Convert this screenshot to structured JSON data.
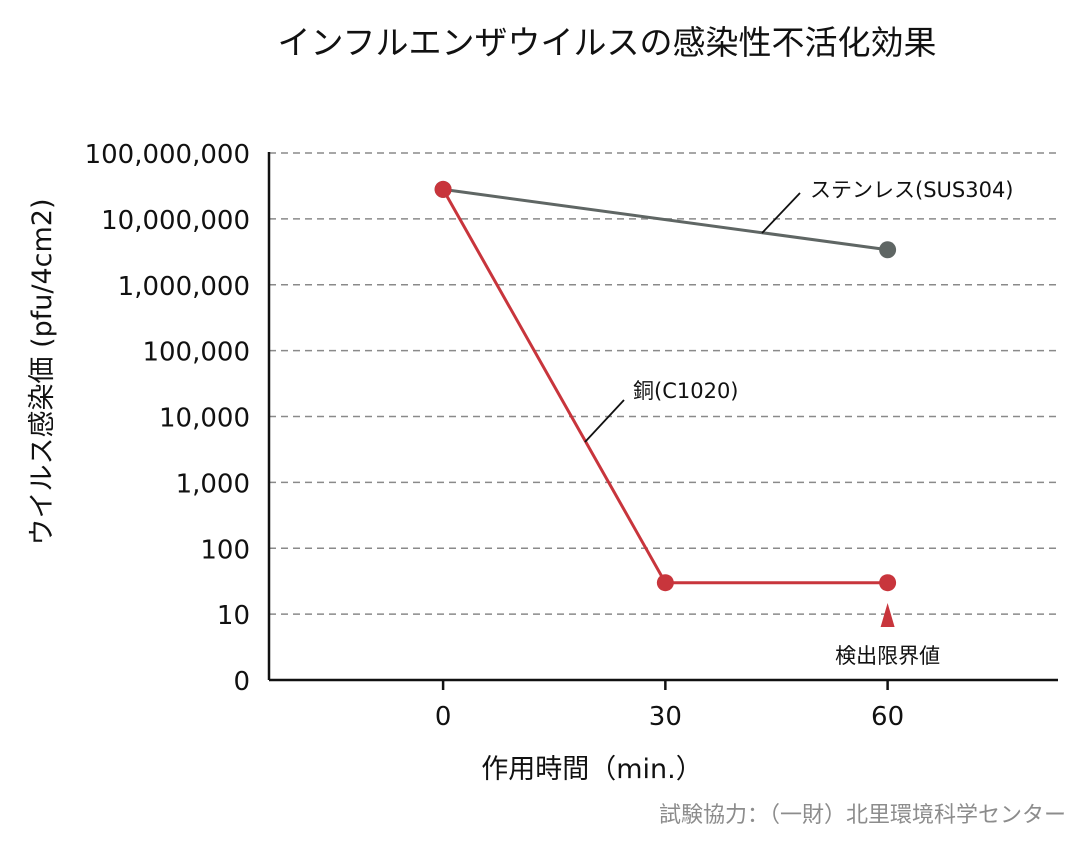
{
  "chart_data": {
    "type": "line",
    "title": "インフルエンザウイルスの感染性不活化効果",
    "xlabel": "作用時間（min.）",
    "ylabel": "ウイルス感染価 (pfu/4cm2)",
    "x_ticks": [
      0,
      30,
      60
    ],
    "x_tick_labels": [
      "0",
      "30",
      "60"
    ],
    "xlim": [
      -23.5,
      83
    ],
    "y_scale": "log",
    "ylim": [
      1,
      100000000
    ],
    "y_ticks": [
      1,
      10,
      100,
      1000,
      10000,
      100000,
      1000000,
      10000000,
      100000000
    ],
    "y_tick_labels": [
      "0",
      "10",
      "100",
      "1,000",
      "10,000",
      "100,000",
      "1,000,000",
      "10,000,000",
      "100,000,000"
    ],
    "grid": true,
    "series": [
      {
        "name": "ステンレス(SUS304)",
        "color": "#5f6664",
        "x": [
          0,
          60
        ],
        "y": [
          28000000,
          3400000
        ]
      },
      {
        "name": "銅(C1020)",
        "color": "#c8353c",
        "x": [
          0,
          30,
          60
        ],
        "y": [
          28000000,
          30,
          30
        ]
      }
    ],
    "annotations": [
      {
        "text": "検出限界値",
        "x": 60,
        "marker": "triangle-up",
        "color": "#c8353c"
      }
    ]
  },
  "credit": "試験協力：（一財）北里環境科学センター"
}
